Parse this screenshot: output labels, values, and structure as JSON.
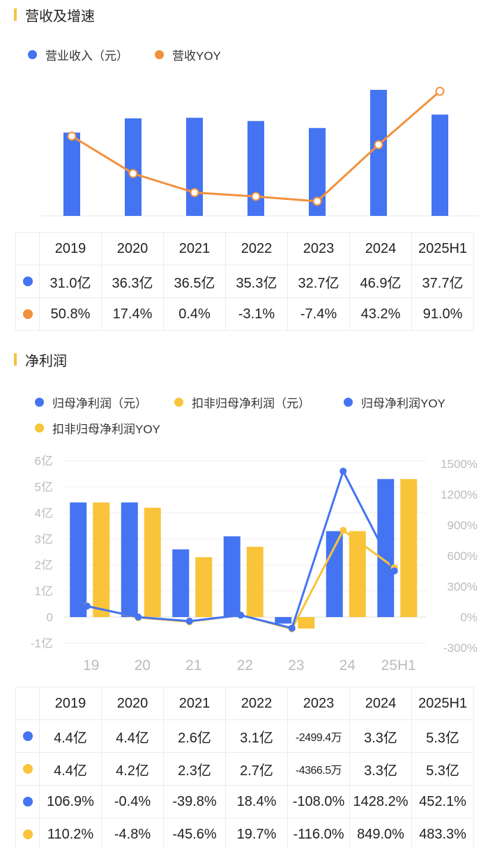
{
  "colors": {
    "blue": "#4474f2",
    "orange": "#f2913d",
    "yellow": "#f9c43a",
    "axis": "#bbbbbb",
    "grid": "#efefef"
  },
  "section1": {
    "title": "营收及增速",
    "legend": [
      "营业收入（元）",
      "营收YOY"
    ]
  },
  "section2": {
    "title": "净利润",
    "legend": [
      "归母净利润（元）",
      "扣非归母净利润（元）",
      "归母净利润YOY",
      "扣非归母净利润YOY"
    ]
  },
  "chart_data": [
    {
      "type": "bar",
      "categories": [
        "2019",
        "2020",
        "2021",
        "2022",
        "2023",
        "2024",
        "2025H1"
      ],
      "series": [
        {
          "name": "营业收入（元）",
          "type": "bar",
          "values": [
            31.0,
            36.3,
            36.5,
            35.3,
            32.7,
            46.9,
            37.7
          ],
          "unit": "亿"
        },
        {
          "name": "营收YOY",
          "type": "line",
          "values": [
            50.8,
            17.4,
            0.4,
            -3.1,
            -7.4,
            43.2,
            91.0
          ],
          "unit": "%"
        }
      ],
      "title": "营收及增速",
      "legend_position": "top-left",
      "grid": false
    },
    {
      "type": "bar",
      "categories": [
        "19",
        "20",
        "21",
        "22",
        "23",
        "24",
        "25H1"
      ],
      "series": [
        {
          "name": "归母净利润（元）",
          "type": "bar",
          "axis": "left",
          "values": [
            4.4,
            4.4,
            2.6,
            3.1,
            -0.25,
            3.3,
            5.3
          ],
          "unit": "亿"
        },
        {
          "name": "扣非归母净利润（元）",
          "type": "bar",
          "axis": "left",
          "values": [
            4.4,
            4.2,
            2.3,
            2.7,
            -0.44,
            3.3,
            5.3
          ],
          "unit": "亿"
        },
        {
          "name": "归母净利润YOY",
          "type": "line",
          "axis": "right",
          "values": [
            106.9,
            -0.4,
            -39.8,
            18.4,
            -108.0,
            1428.2,
            452.1
          ],
          "unit": "%"
        },
        {
          "name": "扣非归母净利润YOY",
          "type": "line",
          "axis": "right",
          "values": [
            110.2,
            -4.8,
            -45.6,
            19.7,
            -116.0,
            849.0,
            483.3
          ],
          "unit": "%"
        }
      ],
      "title": "净利润",
      "y_left": {
        "ticks": [
          -1,
          0,
          1,
          2,
          3,
          4,
          5,
          6
        ],
        "tick_labels": [
          "-1亿",
          "0",
          "1亿",
          "2亿",
          "3亿",
          "4亿",
          "5亿",
          "6亿"
        ],
        "ylim": [
          -1,
          6
        ]
      },
      "y_right": {
        "ticks": [
          -300,
          0,
          300,
          600,
          900,
          1200,
          1500
        ],
        "tick_labels": [
          "-300%",
          "0%",
          "300%",
          "600%",
          "900%",
          "1200%",
          "1500%"
        ],
        "ylim": [
          -300,
          1500
        ]
      },
      "legend_position": "top-left",
      "grid": true
    }
  ],
  "table1": {
    "header": [
      "2019",
      "2020",
      "2021",
      "2022",
      "2023",
      "2024",
      "2025H1"
    ],
    "rows": [
      {
        "color": "#4474f2",
        "cells": [
          "31.0亿",
          "36.3亿",
          "36.5亿",
          "35.3亿",
          "32.7亿",
          "46.9亿",
          "37.7亿"
        ]
      },
      {
        "color": "#f2913d",
        "cells": [
          "50.8%",
          "17.4%",
          "0.4%",
          "-3.1%",
          "-7.4%",
          "43.2%",
          "91.0%"
        ]
      }
    ]
  },
  "table2": {
    "header": [
      "2019",
      "2020",
      "2021",
      "2022",
      "2023",
      "2024",
      "2025H1"
    ],
    "rows": [
      {
        "color": "#4474f2",
        "cells": [
          "4.4亿",
          "4.4亿",
          "2.6亿",
          "3.1亿",
          "-2499.4万",
          "3.3亿",
          "5.3亿"
        ]
      },
      {
        "color": "#f9c43a",
        "cells": [
          "4.4亿",
          "4.2亿",
          "2.3亿",
          "2.7亿",
          "-4366.5万",
          "3.3亿",
          "5.3亿"
        ]
      },
      {
        "color": "#4474f2",
        "cells": [
          "106.9%",
          "-0.4%",
          "-39.8%",
          "18.4%",
          "-108.0%",
          "1428.2%",
          "452.1%"
        ]
      },
      {
        "color": "#f9c43a",
        "cells": [
          "110.2%",
          "-4.8%",
          "-45.6%",
          "19.7%",
          "-116.0%",
          "849.0%",
          "483.3%"
        ]
      }
    ]
  }
}
